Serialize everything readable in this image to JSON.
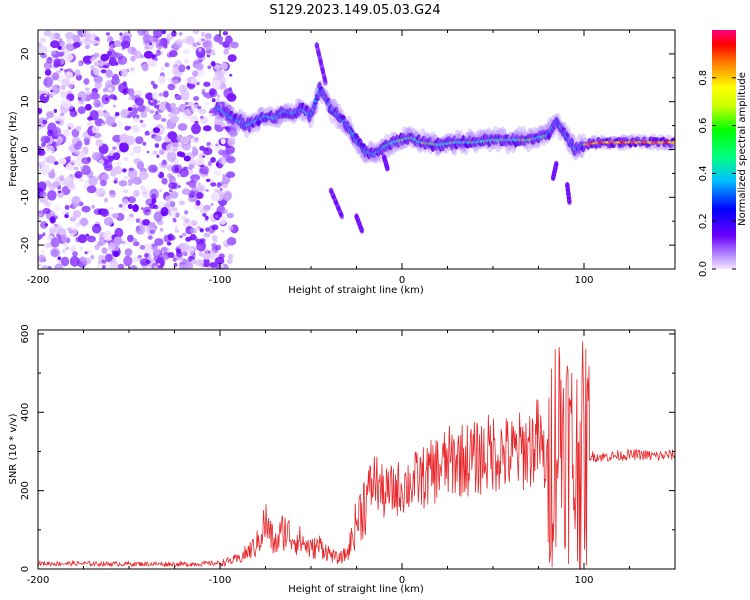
{
  "figure": {
    "title": "S129.2023.149.05.03.G24"
  },
  "chart_data": [
    {
      "type": "heatmap",
      "xlabel": "Height of straight line (km)",
      "ylabel": "Frequency (Hz)",
      "xlim": [
        -200,
        150
      ],
      "ylim": [
        -25,
        25
      ],
      "x_ticks": [
        -200,
        -100,
        0,
        100
      ],
      "x_tick_labels": [
        "-200",
        "-100",
        "0",
        "100"
      ],
      "y_ticks": [
        -20,
        -10,
        0,
        10,
        20
      ],
      "y_tick_labels": [
        "-20",
        "-10",
        "0",
        "10",
        "20"
      ],
      "colorbar": {
        "label": "Normalized spectral amplitude",
        "range": [
          0,
          1
        ],
        "ticks": [
          0.0,
          0.2,
          0.4,
          0.6,
          0.8
        ],
        "tick_labels": [
          "0.0",
          "0.2",
          "0.4",
          "0.6",
          "0.8"
        ]
      },
      "ridge": [
        {
          "x": -100,
          "y": 8.5
        },
        {
          "x": -95,
          "y": 7
        },
        {
          "x": -90,
          "y": 6
        },
        {
          "x": -85,
          "y": 5
        },
        {
          "x": -80,
          "y": 6
        },
        {
          "x": -75,
          "y": 7
        },
        {
          "x": -70,
          "y": 6.5
        },
        {
          "x": -65,
          "y": 8
        },
        {
          "x": -60,
          "y": 7.5
        },
        {
          "x": -55,
          "y": 8.5
        },
        {
          "x": -50,
          "y": 7
        },
        {
          "x": -45,
          "y": 13
        },
        {
          "x": -40,
          "y": 9
        },
        {
          "x": -35,
          "y": 7
        },
        {
          "x": -30,
          "y": 5
        },
        {
          "x": -25,
          "y": 2
        },
        {
          "x": -20,
          "y": -0.5
        },
        {
          "x": -15,
          "y": -1
        },
        {
          "x": -10,
          "y": 0.5
        },
        {
          "x": -5,
          "y": 1.5
        },
        {
          "x": 0,
          "y": 2
        },
        {
          "x": 5,
          "y": 2.5
        },
        {
          "x": 10,
          "y": 1.5
        },
        {
          "x": 20,
          "y": 1
        },
        {
          "x": 30,
          "y": 1.5
        },
        {
          "x": 40,
          "y": 1.5
        },
        {
          "x": 50,
          "y": 2
        },
        {
          "x": 60,
          "y": 2
        },
        {
          "x": 70,
          "y": 2
        },
        {
          "x": 80,
          "y": 3
        },
        {
          "x": 85,
          "y": 6
        },
        {
          "x": 90,
          "y": 3
        },
        {
          "x": 95,
          "y": 0
        },
        {
          "x": 100,
          "y": 1
        },
        {
          "x": 110,
          "y": 1.5
        },
        {
          "x": 120,
          "y": 1.5
        },
        {
          "x": 130,
          "y": 1.5
        },
        {
          "x": 140,
          "y": 1.5
        },
        {
          "x": 150,
          "y": 1.5
        }
      ]
    },
    {
      "type": "line",
      "xlabel": "Height of straight line (km)",
      "ylabel": "SNR (10 * v/v)",
      "xlim": [
        -200,
        150
      ],
      "ylim": [
        0,
        610
      ],
      "x_ticks": [
        -200,
        -100,
        0,
        100
      ],
      "x_tick_labels": [
        "-200",
        "-100",
        "0",
        "100"
      ],
      "y_ticks": [
        0,
        200,
        400,
        600
      ],
      "y_tick_labels": [
        "0",
        "200",
        "400",
        "600"
      ],
      "series": [
        {
          "color": "#e8272b",
          "x": [
            -200,
            -180,
            -160,
            -140,
            -120,
            -100,
            -90,
            -80,
            -75,
            -70,
            -65,
            -60,
            -55,
            -50,
            -45,
            -40,
            -35,
            -30,
            -25,
            -20,
            -15,
            -10,
            -5,
            0,
            5,
            10,
            15,
            20,
            25,
            30,
            40,
            50,
            60,
            70,
            75,
            80,
            85,
            88,
            92,
            95,
            100,
            105,
            110,
            120,
            130,
            140,
            150
          ],
          "y": [
            14,
            14,
            13,
            13,
            12,
            15,
            25,
            60,
            120,
            60,
            100,
            80,
            70,
            50,
            60,
            40,
            25,
            40,
            120,
            180,
            230,
            190,
            200,
            210,
            220,
            230,
            240,
            260,
            270,
            280,
            280,
            300,
            290,
            310,
            330,
            250,
            350,
            380,
            300,
            250,
            290,
            288,
            286,
            290,
            292,
            288,
            292
          ]
        }
      ]
    }
  ]
}
